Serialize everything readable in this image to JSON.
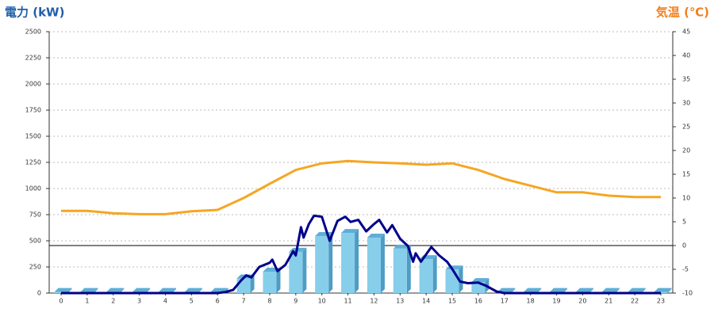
{
  "chart_data": {
    "type": "combo",
    "ylabel": "電力 (kW)",
    "y2label": "気温 (℃)",
    "categories": [
      "0",
      "1",
      "2",
      "3",
      "4",
      "5",
      "6",
      "7",
      "8",
      "9",
      "10",
      "11",
      "12",
      "13",
      "14",
      "15",
      "16",
      "17",
      "18",
      "19",
      "20",
      "21",
      "22",
      "23"
    ],
    "ylim": [
      0,
      2500
    ],
    "yticks": [
      0,
      250,
      500,
      750,
      1000,
      1250,
      1500,
      1750,
      2000,
      2250,
      2500
    ],
    "y2lim": [
      -10,
      45
    ],
    "y2ticks": [
      -10,
      -5,
      0,
      5,
      10,
      15,
      20,
      25,
      30,
      35,
      40,
      45
    ],
    "grid": true,
    "reference_line": {
      "axis": "y2",
      "value": 0
    },
    "series": [
      {
        "type": "bar",
        "color": "#87ceeb",
        "values": [
          10,
          10,
          10,
          10,
          10,
          10,
          10,
          140,
          205,
          395,
          545,
          575,
          530,
          425,
          325,
          225,
          105,
          10,
          10,
          10,
          10,
          10,
          10,
          10
        ]
      },
      {
        "type": "line",
        "color": "#00008b",
        "x": [
          0,
          6,
          6.3,
          6.6,
          6.9,
          7.1,
          7.3,
          7.6,
          8.0,
          8.1,
          8.3,
          8.6,
          8.9,
          9.0,
          9.2,
          9.3,
          9.5,
          9.7,
          10.0,
          10.3,
          10.6,
          10.9,
          11.1,
          11.4,
          11.7,
          12.0,
          12.2,
          12.5,
          12.7,
          13.0,
          13.3,
          13.5,
          13.6,
          13.8,
          14.2,
          14.5,
          14.8,
          15.0,
          15.3,
          15.6,
          16.0,
          16.3,
          16.7,
          17,
          23
        ],
        "values": [
          0,
          0,
          10,
          30,
          120,
          170,
          150,
          250,
          290,
          320,
          210,
          270,
          400,
          360,
          630,
          530,
          660,
          740,
          730,
          500,
          690,
          730,
          680,
          700,
          590,
          660,
          700,
          580,
          650,
          520,
          450,
          300,
          380,
          300,
          440,
          360,
          300,
          230,
          110,
          95,
          100,
          70,
          15,
          0,
          0
        ]
      },
      {
        "type": "line",
        "axis": "y2",
        "color": "#f5a623",
        "values": [
          7.3,
          7.3,
          6.8,
          6.6,
          6.6,
          7.2,
          7.5,
          10,
          13,
          15.9,
          17.3,
          17.8,
          17.5,
          17.3,
          17.0,
          17.3,
          15.9,
          14,
          12.6,
          11.2,
          11.2,
          10.5,
          10.2,
          10.2
        ]
      }
    ]
  }
}
